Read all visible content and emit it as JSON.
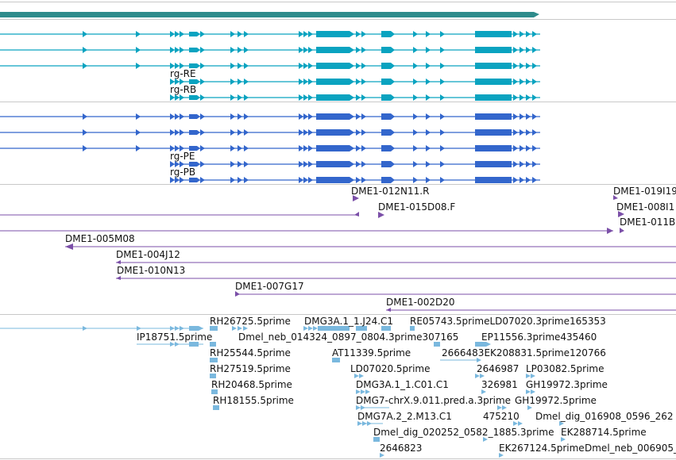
{
  "colors": {
    "gene": "#2e8b8b",
    "transcript": "#0aa3c0",
    "protein": "#3366cc",
    "bac": "#7b4fa8",
    "est": "#7ab8de",
    "divider": "#c8c8c8"
  },
  "transcripts": [
    {
      "label": ""
    },
    {
      "label": ""
    },
    {
      "label": ""
    },
    {
      "label": "rg-RE"
    },
    {
      "label": "rg-RB"
    }
  ],
  "proteins": [
    {
      "label": ""
    },
    {
      "label": ""
    },
    {
      "label": ""
    },
    {
      "label": "rg-PE"
    },
    {
      "label": "rg-PB"
    }
  ],
  "bac_labels": {
    "b1": "DME1-012N11.R",
    "b2": "DME1-019I19",
    "b3": "DME1-015D08.F",
    "b4": "DME1-008I1",
    "b5": "DME1-011B",
    "b6": "DME1-005M08",
    "b7": "DME1-004J12",
    "b8": "DME1-010N13",
    "b9": "DME1-007G17",
    "b10": "DME1-002D20"
  },
  "est_labels": {
    "e1": "RH26725.5prime",
    "e2": "DMG3A.1_1.J24.C1",
    "e3": "RE05743.5primeLD07020.3prime165353",
    "e4": "IP18751.5prime",
    "e5": "Dmel_neb_014324_0897_0804.3prime307165",
    "e6": "EP11556.3prime435460",
    "e7": "RH25544.5prime",
    "e8": "AT11339.5prime",
    "e9": "2666483EK20883",
    "e10": "1.5prime120766",
    "e11": "RH27519.5prime",
    "e12": "LD07020.5prime",
    "e13": "2646987",
    "e14": "LP03082.5prime",
    "e15": "RH20468.5prime",
    "e16": "DMG3A.1_1.C01.C1",
    "e17": "326981",
    "e18": "GH19972.3prime",
    "e19": "RH18155.5prime",
    "e20": "DMG7-chrX.9.011.pred.a.3prime",
    "e21": "GH19972.5prime",
    "e22": "DMG7A.2_2.M13.C1",
    "e23": "475210",
    "e24": "Dmel_dig_016908_0596_262",
    "e25": "Dmel_dig_020252_0582_1885.3prime",
    "e26": "EK288714.5prime",
    "e27": "2646823",
    "e28": "EK267124.5prime",
    "e29": "Dmel_neb_006905_"
  }
}
